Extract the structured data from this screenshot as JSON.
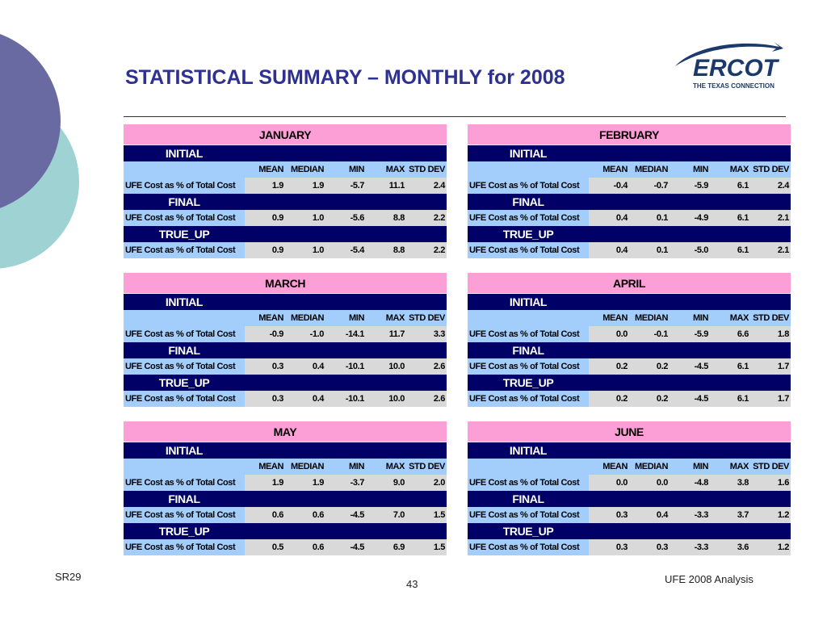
{
  "header": {
    "title": "STATISTICAL SUMMARY – MONTHLY for 2008",
    "logo": {
      "name": "ERCOT",
      "tagline": "THE TEXAS CONNECTION"
    }
  },
  "columns": [
    "MEAN",
    "MEDIAN",
    "MIN",
    "MAX",
    "STD DEV"
  ],
  "row_label": "UFE Cost as % of Total Cost",
  "tables": [
    {
      "month": "JANUARY",
      "sections": [
        {
          "name": "INITIAL",
          "values": [
            "1.9",
            "1.9",
            "-5.7",
            "11.1",
            "2.4"
          ]
        },
        {
          "name": "FINAL",
          "values": [
            "0.9",
            "1.0",
            "-5.6",
            "8.8",
            "2.2"
          ]
        },
        {
          "name": "TRUE_UP",
          "values": [
            "0.9",
            "1.0",
            "-5.4",
            "8.8",
            "2.2"
          ]
        }
      ]
    },
    {
      "month": "FEBRUARY",
      "sections": [
        {
          "name": "INITIAL",
          "values": [
            "-0.4",
            "-0.7",
            "-5.9",
            "6.1",
            "2.4"
          ]
        },
        {
          "name": "FINAL",
          "values": [
            "0.4",
            "0.1",
            "-4.9",
            "6.1",
            "2.1"
          ]
        },
        {
          "name": "TRUE_UP",
          "values": [
            "0.4",
            "0.1",
            "-5.0",
            "6.1",
            "2.1"
          ]
        }
      ]
    },
    {
      "month": "MARCH",
      "sections": [
        {
          "name": "INITIAL",
          "values": [
            "-0.9",
            "-1.0",
            "-14.1",
            "11.7",
            "3.3"
          ]
        },
        {
          "name": "FINAL",
          "values": [
            "0.3",
            "0.4",
            "-10.1",
            "10.0",
            "2.6"
          ]
        },
        {
          "name": "TRUE_UP",
          "values": [
            "0.3",
            "0.4",
            "-10.1",
            "10.0",
            "2.6"
          ]
        }
      ]
    },
    {
      "month": "APRIL",
      "sections": [
        {
          "name": "INITIAL",
          "values": [
            "0.0",
            "-0.1",
            "-5.9",
            "6.6",
            "1.8"
          ]
        },
        {
          "name": "FINAL",
          "values": [
            "0.2",
            "0.2",
            "-4.5",
            "6.1",
            "1.7"
          ]
        },
        {
          "name": "TRUE_UP",
          "values": [
            "0.2",
            "0.2",
            "-4.5",
            "6.1",
            "1.7"
          ]
        }
      ]
    },
    {
      "month": "MAY",
      "sections": [
        {
          "name": "INITIAL",
          "values": [
            "1.9",
            "1.9",
            "-3.7",
            "9.0",
            "2.0"
          ]
        },
        {
          "name": "FINAL",
          "values": [
            "0.6",
            "0.6",
            "-4.5",
            "7.0",
            "1.5"
          ]
        },
        {
          "name": "TRUE_UP",
          "values": [
            "0.5",
            "0.6",
            "-4.5",
            "6.9",
            "1.5"
          ]
        }
      ]
    },
    {
      "month": "JUNE",
      "sections": [
        {
          "name": "INITIAL",
          "values": [
            "0.0",
            "0.0",
            "-4.8",
            "3.8",
            "1.6"
          ]
        },
        {
          "name": "FINAL",
          "values": [
            "0.3",
            "0.4",
            "-3.3",
            "3.7",
            "1.2"
          ]
        },
        {
          "name": "TRUE_UP",
          "values": [
            "0.3",
            "0.3",
            "-3.3",
            "3.6",
            "1.2"
          ]
        }
      ]
    }
  ],
  "footer": {
    "left": "SR29",
    "page": "43",
    "right": "UFE 2008 Analysis"
  }
}
